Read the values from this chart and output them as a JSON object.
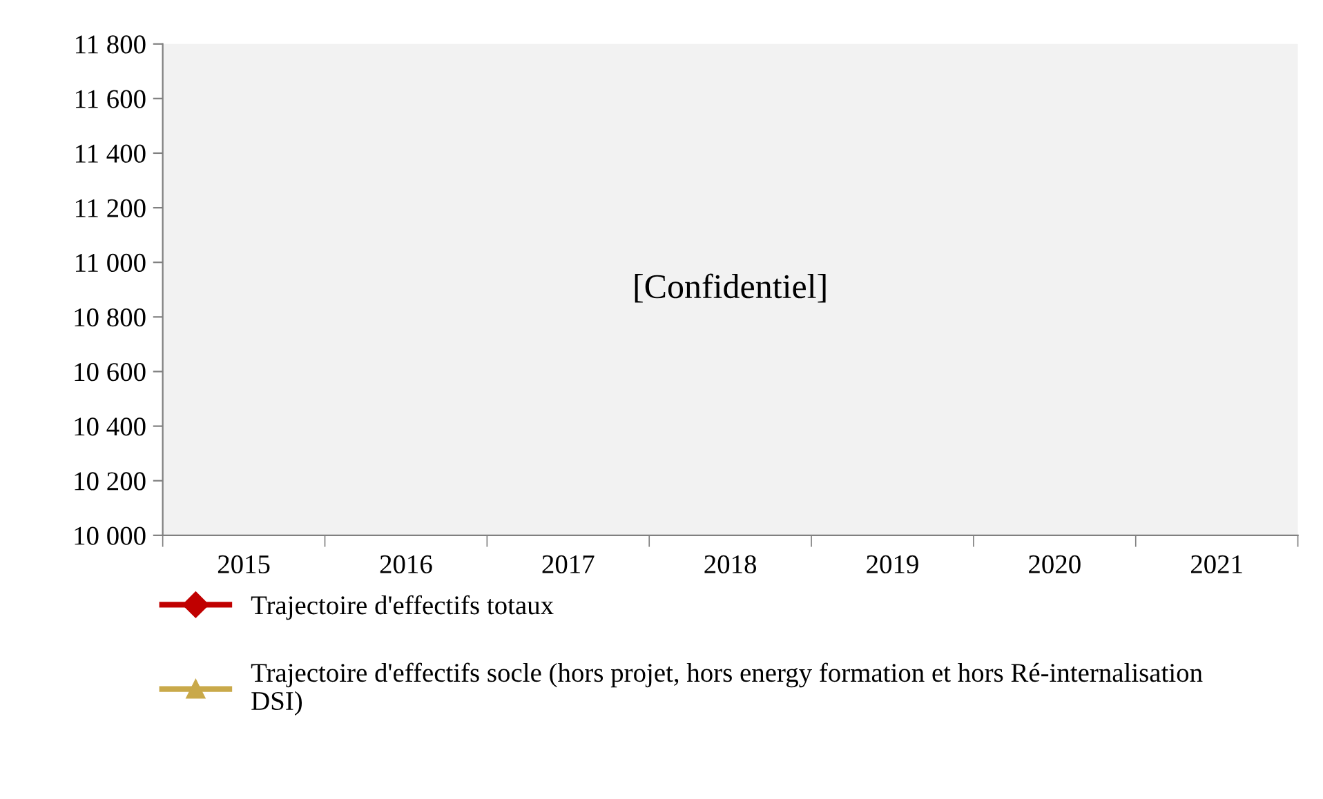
{
  "chart_data": {
    "type": "line",
    "categories": [
      "2015",
      "2016",
      "2017",
      "2018",
      "2019",
      "2020",
      "2021"
    ],
    "series": [
      {
        "name": "Trajectoire d'effectifs totaux",
        "color": "#c00000",
        "marker": "diamond",
        "values": [
          null,
          null,
          null,
          null,
          null,
          null,
          null
        ]
      },
      {
        "name": "Trajectoire d'effectifs socle (hors projet, hors energy formation et hors Ré-internalisation DSI)",
        "color": "#c9a94a",
        "marker": "triangle",
        "values": [
          null,
          null,
          null,
          null,
          null,
          null,
          null
        ]
      }
    ],
    "ylim": [
      10000,
      11800
    ],
    "yticks": [
      {
        "value": 10000,
        "label": "10 000"
      },
      {
        "value": 10200,
        "label": "10 200"
      },
      {
        "value": 10400,
        "label": "10 400"
      },
      {
        "value": 10600,
        "label": "10 600"
      },
      {
        "value": 10800,
        "label": "10 800"
      },
      {
        "value": 11000,
        "label": "11 000"
      },
      {
        "value": 11200,
        "label": "11 200"
      },
      {
        "value": 11400,
        "label": "11 400"
      },
      {
        "value": 11600,
        "label": "11 600"
      },
      {
        "value": 11800,
        "label": "11 800"
      }
    ],
    "annotations": [
      "[Confidentiel]"
    ],
    "grid": false,
    "legend": "bottom"
  }
}
